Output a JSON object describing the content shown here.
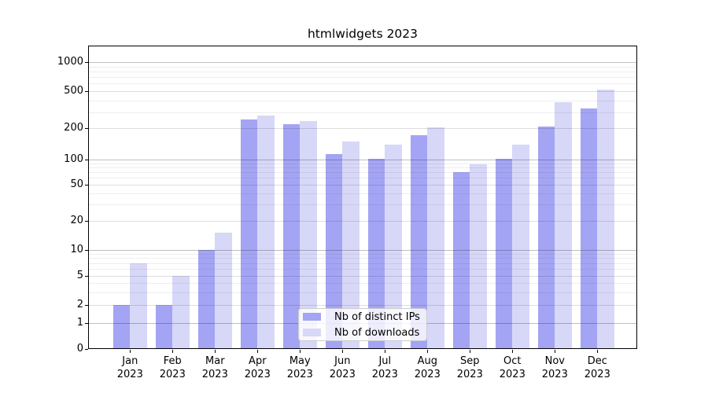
{
  "chart_data": {
    "type": "bar",
    "title": "htmlwidgets 2023",
    "categories": [
      "Jan 2023",
      "Feb 2023",
      "Mar 2023",
      "Apr 2023",
      "May 2023",
      "Jun 2023",
      "Jul 2023",
      "Aug 2023",
      "Sep 2023",
      "Oct 2023",
      "Nov 2023",
      "Dec 2023"
    ],
    "series": [
      {
        "key": "distinct-ips",
        "name": "Nb of distinct IPs",
        "color": "#a4a4f4",
        "values": [
          2,
          2,
          10,
          250,
          220,
          112,
          102,
          172,
          71,
          101,
          210,
          325
        ]
      },
      {
        "key": "downloads",
        "name": "Nb of downloads",
        "color": "#d7d7f8",
        "values": [
          7,
          5,
          15,
          275,
          240,
          150,
          140,
          205,
          87,
          140,
          380,
          520
        ]
      }
    ],
    "xlabel": "",
    "ylabel": "",
    "y_axis": {
      "scale": "symlog",
      "ticks": [
        0,
        1,
        2,
        5,
        10,
        20,
        50,
        100,
        200,
        500,
        1000
      ],
      "range": [
        0,
        1480
      ]
    },
    "x_axis": {
      "ticks_per_category": true
    },
    "grid": true,
    "legend": {
      "position": "inside-bottom-center"
    }
  }
}
